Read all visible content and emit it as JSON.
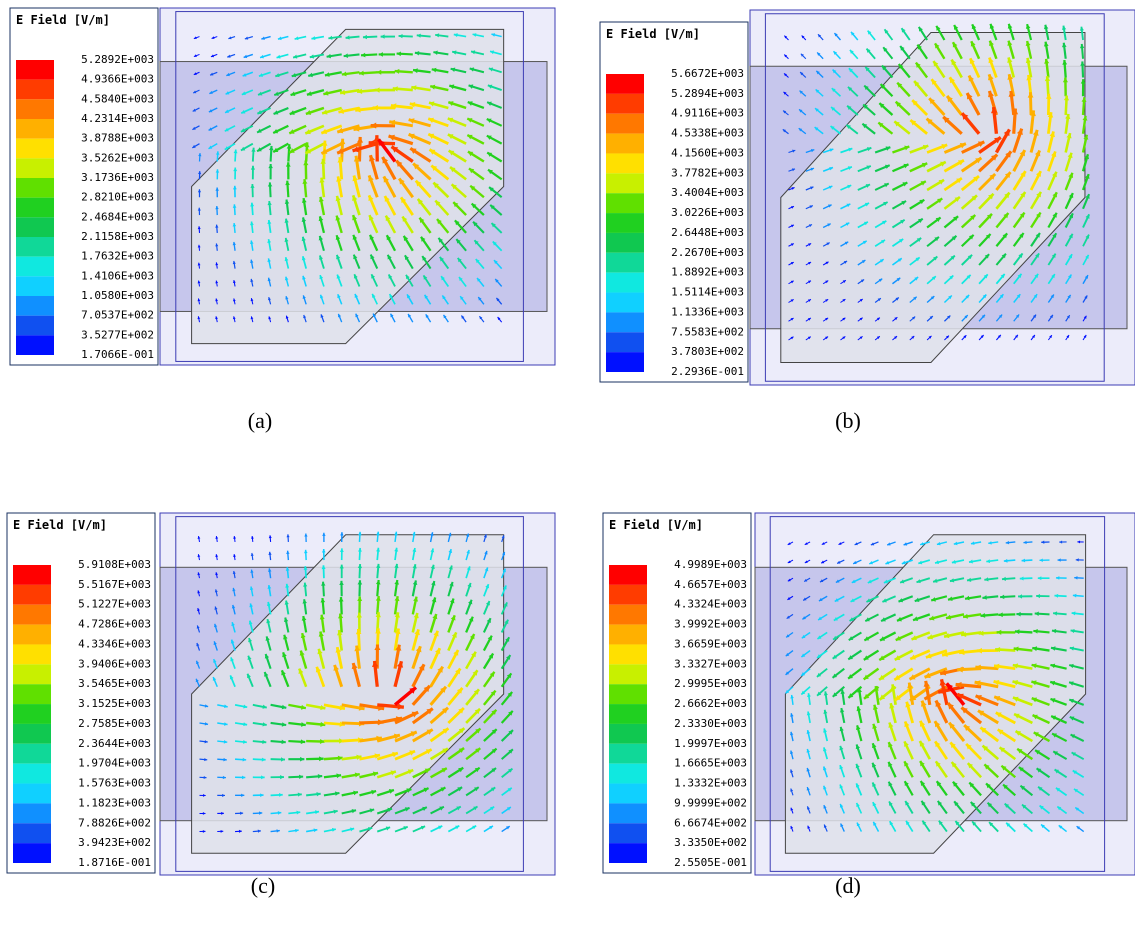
{
  "panels": [
    {
      "caption": "(a)",
      "legend_title": "E Field [V/m]",
      "legend_labels": [
        "5.2892E+003",
        "4.9366E+003",
        "4.5840E+003",
        "4.2314E+003",
        "3.8788E+003",
        "3.5262E+003",
        "3.1736E+003",
        "2.8210E+003",
        "2.4684E+003",
        "2.1158E+003",
        "1.7632E+003",
        "1.4106E+003",
        "1.0580E+003",
        "7.0537E+002",
        "3.5277E+002",
        "1.7066E-001"
      ]
    },
    {
      "caption": "(b)",
      "legend_title": "E Field [V/m]",
      "legend_labels": [
        "5.6672E+003",
        "5.2894E+003",
        "4.9116E+003",
        "4.5338E+003",
        "4.1560E+003",
        "3.7782E+003",
        "3.4004E+003",
        "3.0226E+003",
        "2.6448E+003",
        "2.2670E+003",
        "1.8892E+003",
        "1.5114E+003",
        "1.1336E+003",
        "7.5583E+002",
        "3.7803E+002",
        "2.2936E-001"
      ]
    },
    {
      "caption": "(c)",
      "legend_title": "E Field [V/m]",
      "legend_labels": [
        "5.9108E+003",
        "5.5167E+003",
        "5.1227E+003",
        "4.7286E+003",
        "4.3346E+003",
        "3.9406E+003",
        "3.5465E+003",
        "3.1525E+003",
        "2.7585E+003",
        "2.3644E+003",
        "1.9704E+003",
        "1.5763E+003",
        "1.1823E+003",
        "7.8826E+002",
        "3.9423E+002",
        "1.8716E-001"
      ]
    },
    {
      "caption": "(d)",
      "legend_title": "E Field [V/m]",
      "legend_labels": [
        "4.9989E+003",
        "4.6657E+003",
        "4.3324E+003",
        "3.9992E+003",
        "3.6659E+003",
        "3.3327E+003",
        "2.9995E+003",
        "2.6662E+003",
        "2.3330E+003",
        "1.9997E+003",
        "1.6665E+003",
        "1.3332E+003",
        "9.9999E+002",
        "6.6674E+002",
        "3.3350E+002",
        "2.5505E-001"
      ]
    }
  ]
}
